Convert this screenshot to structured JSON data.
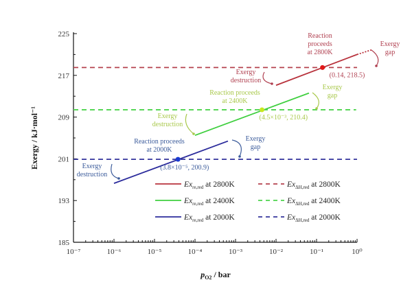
{
  "chart_data": {
    "type": "line",
    "title": "",
    "xlabel": "p_O2 / bar",
    "xlabel_main": "p",
    "xlabel_sub": "O2",
    "xlabel_unit": " / bar",
    "ylabel": "Exergy / kJ·mol⁻¹",
    "xscale": "log",
    "xlim": [
      1e-07,
      1
    ],
    "ylim": [
      185,
      225
    ],
    "yticks": [
      "185",
      "193",
      "201",
      "209",
      "217",
      "225"
    ],
    "xticks": [
      "10⁻⁷",
      "10⁻⁶",
      "10⁻⁵",
      "10⁻⁴",
      "10⁻³",
      "10⁻²",
      "10⁻¹",
      "10⁰"
    ],
    "grid": false,
    "legend_placement": "lower-right",
    "series": [
      {
        "name": "Ex_re,red at 2800K",
        "label_main": "Ex",
        "label_sub": "re,red",
        "label_tail": " at 2800K",
        "style": "solid",
        "color": "#b8323c",
        "x": [
          0.01,
          1
        ],
        "y": [
          215.1,
          221.0
        ]
      },
      {
        "name": "Ex_ΔH,red at 2800K",
        "label_main": "Ex",
        "label_sub": "ΔH,red",
        "label_tail": " at 2800K",
        "style": "dashed",
        "color": "#b5424e",
        "x": [
          1e-07,
          1
        ],
        "y": [
          218.5,
          218.5
        ]
      },
      {
        "name": "Ex_re,red at 2400K",
        "label_main": "Ex",
        "label_sub": "re,red",
        "label_tail": " at 2400K",
        "style": "solid",
        "color": "#3fcf3f",
        "x": [
          0.0001,
          0.065
        ],
        "y": [
          205.5,
          213.6
        ]
      },
      {
        "name": "Ex_ΔH,red at 2400K",
        "label_main": "Ex",
        "label_sub": "ΔH,red",
        "label_tail": " at 2400K",
        "style": "dashed",
        "color": "#4cd44c",
        "x": [
          1e-07,
          0.95
        ],
        "y": [
          210.4,
          210.4
        ]
      },
      {
        "name": "Ex_re,red at 2000K",
        "label_main": "Ex",
        "label_sub": "re,red",
        "label_tail": " at 2000K",
        "style": "solid",
        "color": "#2c2c9c",
        "x": [
          1e-06,
          0.00065
        ],
        "y": [
          196.3,
          204.4
        ]
      },
      {
        "name": "Ex_ΔH,red at 2000K",
        "label_main": "Ex",
        "label_sub": "ΔH,red",
        "label_tail": " at 2000K",
        "style": "dashed",
        "color": "#34349c",
        "x": [
          1e-07,
          1
        ],
        "y": [
          200.9,
          200.9
        ]
      }
    ],
    "extension": {
      "style": "dotted",
      "color": "#b8323c",
      "x": [
        1,
        2.3
      ],
      "y": [
        221.0,
        221.9
      ]
    },
    "points": [
      {
        "x": 0.14,
        "y": 218.5,
        "label": "(0.14, 218.5)",
        "color": "#e01818"
      },
      {
        "x": 0.0045,
        "y": 210.4,
        "label": "(4.5×10⁻³, 210.4)",
        "color": "#c8e820"
      },
      {
        "x": 3.8e-05,
        "y": 200.9,
        "label": "(3.8×10⁻⁵, 200.9)",
        "color": "#1a3ad0"
      }
    ],
    "annotations": {
      "t2800": {
        "lines": [
          "Reaction",
          "proceeds",
          "at 2800K"
        ],
        "color": "#b04050"
      },
      "gap2800": {
        "lines": [
          "Exergy",
          "gap"
        ],
        "color": "#b04050"
      },
      "dest2800": {
        "lines": [
          "Exergy",
          "destruction"
        ],
        "color": "#b04050"
      },
      "t2400": {
        "lines": [
          "Reaction proceeds",
          "at 2400K"
        ],
        "color": "#a8c84a"
      },
      "gap2400": {
        "lines": [
          "Exergy",
          "gap"
        ],
        "color": "#a8c84a"
      },
      "dest2400": {
        "lines": [
          "Exergy",
          "destruction"
        ],
        "color": "#a8c84a"
      },
      "t2000": {
        "lines": [
          "Reaction proceeds",
          "at 2000K"
        ],
        "color": "#3a5a9a"
      },
      "gap2000": {
        "lines": [
          "Exergy",
          "gap"
        ],
        "color": "#3a5a9a"
      },
      "dest2000": {
        "lines": [
          "Exergy",
          "destruction"
        ],
        "color": "#3a5a9a"
      }
    }
  }
}
